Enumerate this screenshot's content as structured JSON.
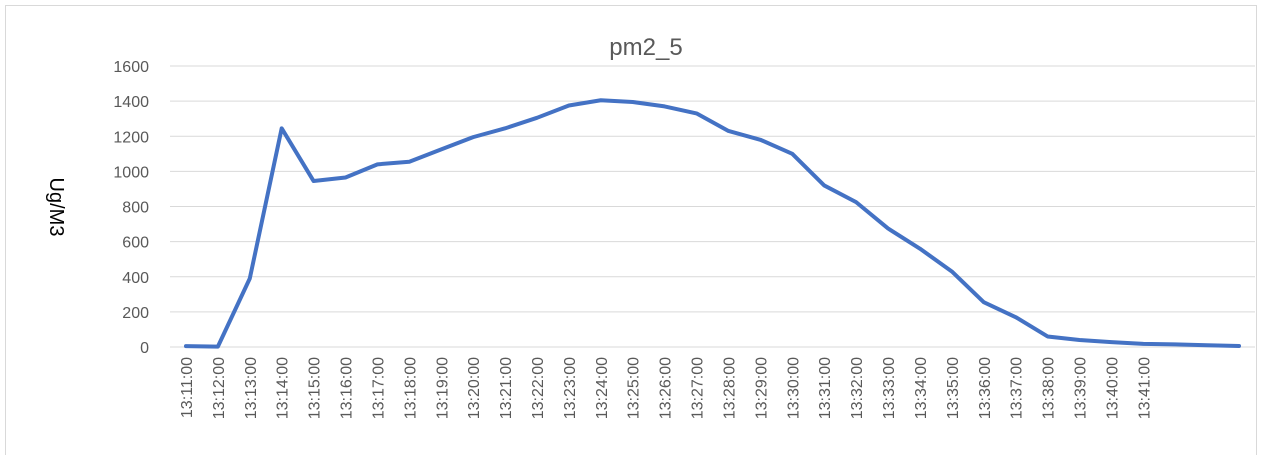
{
  "chart_data": {
    "type": "line",
    "title": "pm2_5",
    "y_label": "Ug/M3",
    "categories": [
      "13:11:00",
      "13:12:00",
      "13:13:00",
      "13:14:00",
      "13:15:00",
      "13:16:00",
      "13:17:00",
      "13:18:00",
      "13:19:00",
      "13:20:00",
      "13:21:00",
      "13:22:00",
      "13:23:00",
      "13:24:00",
      "13:25:00",
      "13:26:00",
      "13:27:00",
      "13:28:00",
      "13:29:00",
      "13:30:00",
      "13:31:00",
      "13:32:00",
      "13:33:00",
      "13:34:00",
      "13:35:00",
      "13:36:00",
      "13:37:00",
      "13:38:00",
      "13:39:00",
      "13:40:00",
      "13:41:00",
      null,
      null,
      null
    ],
    "series": [
      {
        "name": "pm2_5",
        "color": "#4472c4",
        "values": [
          5,
          2,
          390,
          1245,
          945,
          965,
          1040,
          1055,
          1125,
          1195,
          1245,
          1305,
          1375,
          1405,
          1395,
          1370,
          1330,
          1230,
          1180,
          1100,
          920,
          825,
          675,
          560,
          430,
          255,
          170,
          60,
          40,
          28,
          18,
          15,
          10,
          6
        ]
      }
    ],
    "ylim": [
      0,
      1600
    ],
    "yticks": [
      0,
      200,
      400,
      600,
      800,
      1000,
      1200,
      1400,
      1600
    ],
    "grid": true
  }
}
